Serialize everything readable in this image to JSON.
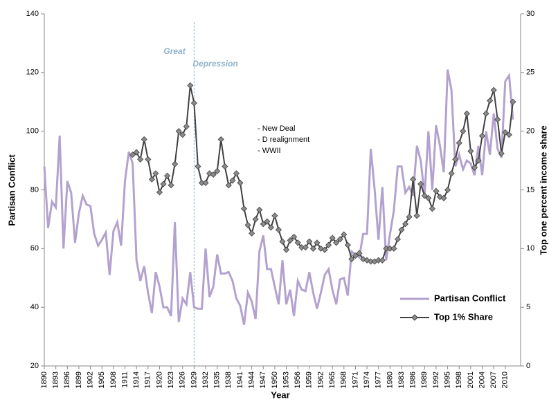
{
  "chart_data": {
    "type": "line",
    "x_label": "Year",
    "y_label": "Partisan Conflict",
    "y2_label": "Top one percent income share",
    "x": [
      1890,
      1891,
      1892,
      1893,
      1894,
      1895,
      1896,
      1897,
      1898,
      1899,
      1900,
      1901,
      1902,
      1903,
      1904,
      1905,
      1906,
      1907,
      1908,
      1909,
      1910,
      1911,
      1912,
      1913,
      1914,
      1915,
      1916,
      1917,
      1918,
      1919,
      1920,
      1921,
      1922,
      1923,
      1924,
      1925,
      1926,
      1927,
      1928,
      1929,
      1930,
      1931,
      1932,
      1933,
      1934,
      1935,
      1936,
      1937,
      1938,
      1939,
      1940,
      1941,
      1942,
      1943,
      1944,
      1945,
      1946,
      1947,
      1948,
      1949,
      1950,
      1951,
      1952,
      1953,
      1954,
      1955,
      1956,
      1957,
      1958,
      1959,
      1960,
      1961,
      1962,
      1963,
      1964,
      1965,
      1966,
      1967,
      1968,
      1969,
      1970,
      1971,
      1972,
      1973,
      1974,
      1975,
      1976,
      1977,
      1978,
      1979,
      1980,
      1981,
      1982,
      1983,
      1984,
      1985,
      1986,
      1987,
      1988,
      1989,
      1990,
      1991,
      1992,
      1993,
      1994,
      1995,
      1996,
      1997,
      1998,
      1999,
      2000,
      2001,
      2002,
      2003,
      2004,
      2005,
      2006,
      2007,
      2008,
      2009,
      2010,
      2011,
      2012
    ],
    "series": [
      {
        "name": "Partisan Conflict",
        "color": "#b3a2cf",
        "axis": "y",
        "values": [
          88,
          67,
          76,
          74,
          98.5,
          60,
          83,
          79,
          62,
          72,
          78,
          75,
          74.5,
          65,
          61,
          63,
          65.5,
          51,
          66,
          69,
          61,
          83,
          93,
          89,
          56,
          49,
          54,
          45,
          38,
          52,
          47,
          40,
          40,
          37,
          69,
          35,
          43,
          41,
          52,
          40,
          39.5,
          39.5,
          60,
          43.5,
          47,
          58,
          51.5,
          51.5,
          52,
          49,
          43,
          40.5,
          34,
          45,
          42,
          36,
          59,
          64.5,
          53,
          53,
          47,
          41,
          56,
          41,
          46,
          37,
          49,
          46,
          45.5,
          52,
          45,
          39.5,
          45,
          51,
          53,
          46,
          41,
          49.5,
          50,
          44,
          59,
          58,
          57,
          65,
          65,
          94,
          80,
          63,
          81,
          56,
          65,
          73,
          88,
          88,
          79,
          81,
          78,
          95,
          90,
          78,
          100,
          80,
          102,
          95,
          86,
          121,
          114,
          88,
          92,
          87,
          90,
          89,
          85,
          95,
          85,
          100,
          92,
          106,
          94,
          91,
          117,
          119,
          104
        ]
      },
      {
        "name": "Top 1% Share",
        "color": "#404040",
        "marker_color": "#8c8c8c",
        "axis": "y2",
        "values": [
          null,
          null,
          null,
          null,
          null,
          null,
          null,
          null,
          null,
          null,
          null,
          null,
          null,
          null,
          null,
          null,
          null,
          null,
          null,
          null,
          null,
          null,
          null,
          18,
          18.2,
          17.6,
          19.3,
          17.6,
          15.9,
          16.4,
          14.8,
          15.5,
          16.2,
          15.4,
          17.2,
          20,
          19.7,
          20.4,
          23.9,
          22.4,
          17,
          15.6,
          15.6,
          16.4,
          16.3,
          16.6,
          19.3,
          17,
          15.4,
          15.8,
          16.4,
          15.6,
          13.4,
          12,
          11.3,
          12.5,
          13.3,
          12.1,
          12.3,
          11.8,
          12.8,
          11.6,
          10.6,
          9.9,
          10.7,
          11,
          10.5,
          10.1,
          10.1,
          10.6,
          10,
          10.5,
          10,
          9.9,
          10.3,
          10.9,
          10.5,
          10.8,
          11.2,
          10.3,
          9.1,
          9.4,
          9.6,
          9.1,
          9,
          8.9,
          8.9,
          9,
          9,
          10,
          10,
          10,
          10.8,
          11.6,
          12.1,
          12.7,
          15.9,
          12.8,
          15.5,
          14.5,
          14.3,
          13.4,
          14.9,
          14.4,
          14.3,
          15,
          16.4,
          17.6,
          19,
          20,
          21.5,
          18.3,
          16.9,
          17.5,
          19.6,
          21.5,
          22.6,
          23.5,
          21,
          18.1,
          19.9,
          19.7,
          22.5
        ]
      }
    ],
    "xlim": [
      1890,
      2014
    ],
    "xticks": [
      1890,
      1893,
      1896,
      1899,
      1902,
      1905,
      1908,
      1911,
      1914,
      1917,
      1920,
      1923,
      1926,
      1929,
      1932,
      1935,
      1938,
      1941,
      1944,
      1947,
      1950,
      1953,
      1956,
      1959,
      1962,
      1965,
      1968,
      1971,
      1974,
      1977,
      1980,
      1983,
      1986,
      1989,
      1992,
      1995,
      1998,
      2001,
      2004,
      2007,
      2010
    ],
    "ylim": [
      20,
      140
    ],
    "yticks": [
      20,
      40,
      60,
      80,
      100,
      120,
      140
    ],
    "y2lim": [
      0,
      30
    ],
    "y2ticks": [
      0,
      5,
      10,
      15,
      20,
      25,
      30
    ],
    "event_line": {
      "x": 1929,
      "color": "#8fb3cc",
      "label": [
        "Great",
        "Depression"
      ]
    },
    "notes": [
      "- New Deal",
      "- D realignment",
      "- WWII"
    ],
    "legend": "lower right"
  }
}
